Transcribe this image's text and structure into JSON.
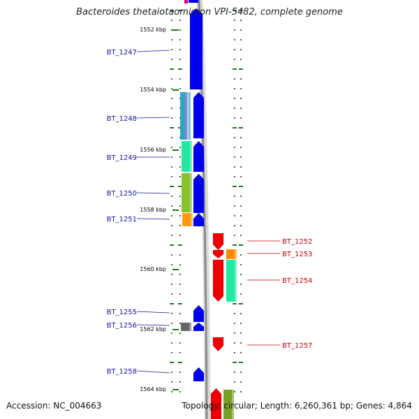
{
  "title": "Bacteroides thetaiotaomicron VPI-5482, complete genome",
  "accession_text": "Accession: NC_004663",
  "topology_text": "Topology: circular; Length: 6,260,361 bp; Genes: 4,864",
  "kbp_labels": [
    "1552 kbp",
    "1554 kbp",
    "1556 kbp",
    "1558 kbp",
    "1560 kbp",
    "1562 kbp",
    "1564 kbp"
  ],
  "colors": {
    "left_label": "#1414a0",
    "right_label": "#c80000",
    "backbone": "#8a8a8a",
    "tick": "#1a7a1a",
    "forward_gene": "#0000ee",
    "reverse_gene": "#ee0000"
  },
  "left_genes": [
    {
      "name": "BT_1247",
      "strand_color": "#0000ee",
      "cog_color": ""
    },
    {
      "name": "BT_1248",
      "strand_color": "#0000ee",
      "cog_color": "#2aa8c8"
    },
    {
      "name": "BT_1249",
      "strand_color": "#0000ee",
      "cog_color": "#22e8a0"
    },
    {
      "name": "BT_1250",
      "strand_color": "#0000ee",
      "cog_color": "#88c030"
    },
    {
      "name": "BT_1251",
      "strand_color": "#0000ee",
      "cog_color": "#ff9a10"
    },
    {
      "name": "BT_1255",
      "strand_color": "#0000ee",
      "cog_color": ""
    },
    {
      "name": "BT_1256",
      "strand_color": "#0000ee",
      "cog_color": "#666666"
    },
    {
      "name": "BT_1258",
      "strand_color": "#0000ee",
      "cog_color": ""
    }
  ],
  "right_genes": [
    {
      "name": "BT_1252",
      "strand_color": "#ee0000",
      "cog_color": ""
    },
    {
      "name": "BT_1253",
      "strand_color": "#ee0000",
      "cog_color": "#ff8c00"
    },
    {
      "name": "BT_1254",
      "strand_color": "#ee0000",
      "cog_color": "#22e8a0"
    },
    {
      "name": "BT_1257",
      "strand_color": "#ee0000",
      "cog_color": ""
    }
  ]
}
